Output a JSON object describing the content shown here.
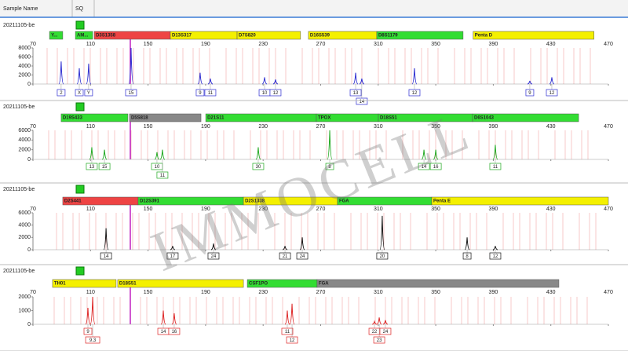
{
  "header": {
    "sample_name": "Sample Name",
    "sq": "SQ"
  },
  "watermark": "IMMOCELL",
  "xticks": [
    70,
    110,
    150,
    190,
    230,
    270,
    310,
    350,
    390,
    430,
    470
  ],
  "xlim": [
    70,
    470
  ],
  "panels": [
    {
      "sample": "20211105-be",
      "color": "#2b2bd0",
      "ylim": [
        0,
        8000
      ],
      "yticks": [
        0,
        2000,
        4000,
        6000,
        8000
      ],
      "loci": [
        {
          "name": "Y...",
          "color": "#33dd33",
          "range": [
            81.5,
            90.7
          ]
        },
        {
          "name": "AM...",
          "color": "#33dd33",
          "range": [
            99.5,
            111.5
          ]
        },
        {
          "name": "D3S1358",
          "color": "#ee4444",
          "range": [
            112.6,
            165.5
          ]
        },
        {
          "name": "D13S317",
          "color": "#f4f000",
          "range": [
            165.5,
            211.9
          ]
        },
        {
          "name": "D7S820",
          "color": "#f4f000",
          "range": [
            211.9,
            256
          ]
        },
        {
          "name": "D16S539",
          "color": "#f4f000",
          "range": [
            261.5,
            309
          ]
        },
        {
          "name": "D8S1179",
          "color": "#33dd33",
          "range": [
            309,
            369
          ]
        },
        {
          "name": "Penta D",
          "color": "#f4f000",
          "range": [
            376,
            460
          ]
        }
      ],
      "peaks": [
        {
          "bp": 89.6,
          "height": 5000,
          "allele": "2"
        },
        {
          "bp": 102.2,
          "height": 3500,
          "allele": "X"
        },
        {
          "bp": 108.7,
          "height": 4500,
          "allele": "Y"
        },
        {
          "bp": 138.2,
          "height": 8000,
          "allele": "15"
        },
        {
          "bp": 186.2,
          "height": 2500,
          "allele": "9"
        },
        {
          "bp": 193.3,
          "height": 1200,
          "allele": "11"
        },
        {
          "bp": 231,
          "height": 1500,
          "allele": "10"
        },
        {
          "bp": 238.6,
          "height": 1000,
          "allele": "12"
        },
        {
          "bp": 294.3,
          "height": 2500,
          "allele": "13"
        },
        {
          "bp": 298.6,
          "height": 1200,
          "allele": "14"
        },
        {
          "bp": 335.2,
          "height": 3500,
          "allele": "12"
        },
        {
          "bp": 415.4,
          "height": 700,
          "allele": "9"
        },
        {
          "bp": 430.7,
          "height": 1500,
          "allele": "12"
        }
      ]
    },
    {
      "sample": "20211105-be",
      "color": "#1fa81f",
      "ylim": [
        0,
        6000
      ],
      "yticks": [
        0,
        2000,
        4000,
        6000
      ],
      "loci": [
        {
          "name": "D19S433",
          "color": "#33dd33",
          "range": [
            89.6,
            136
          ]
        },
        {
          "name": "D5S818",
          "color": "#888888",
          "range": [
            137.1,
            186.8
          ]
        },
        {
          "name": "D21S11",
          "color": "#33dd33",
          "range": [
            190.1,
            267
          ]
        },
        {
          "name": "TPOX",
          "color": "#33dd33",
          "range": [
            267,
            310.1
          ]
        },
        {
          "name": "D18S51",
          "color": "#33dd33",
          "range": [
            310.1,
            375.6
          ]
        },
        {
          "name": "D6S1043",
          "color": "#33dd33",
          "range": [
            375.6,
            449.3
          ]
        }
      ],
      "peaks": [
        {
          "bp": 110.9,
          "height": 2500,
          "allele": "13"
        },
        {
          "bp": 119.7,
          "height": 2000,
          "allele": "15"
        },
        {
          "bp": 156.2,
          "height": 1500,
          "allele": "10"
        },
        {
          "bp": 160,
          "height": 2000,
          "allele": "11"
        },
        {
          "bp": 226.6,
          "height": 2500,
          "allele": "30"
        },
        {
          "bp": 276.3,
          "height": 6000,
          "allele": "8"
        },
        {
          "bp": 341.8,
          "height": 2000,
          "allele": "14"
        },
        {
          "bp": 350,
          "height": 2000,
          "allele": "16"
        },
        {
          "bp": 391.4,
          "height": 3000,
          "allele": "11"
        }
      ]
    },
    {
      "sample": "20211105-be",
      "color": "#111111",
      "ylim": [
        0,
        6000
      ],
      "yticks": [
        0,
        2000,
        4000,
        6000
      ],
      "loci": [
        {
          "name": "D2S441",
          "color": "#ee4444",
          "range": [
            90.7,
            143.1
          ]
        },
        {
          "name": "D12S391",
          "color": "#33dd33",
          "range": [
            143.1,
            216.3
          ]
        },
        {
          "name": "D2S1338",
          "color": "#f4f000",
          "range": [
            216.3,
            281.7
          ]
        },
        {
          "name": "FGA",
          "color": "#33dd33",
          "range": [
            281.7,
            347.2
          ]
        },
        {
          "name": "Penta E",
          "color": "#f4f000",
          "range": [
            347.2,
            470
          ]
        }
      ],
      "peaks": [
        {
          "bp": 120.8,
          "height": 3500,
          "allele": "14"
        },
        {
          "bp": 167.1,
          "height": 600,
          "allele": "17"
        },
        {
          "bp": 195.5,
          "height": 1000,
          "allele": "24"
        },
        {
          "bp": 245.2,
          "height": 600,
          "allele": "21"
        },
        {
          "bp": 257.2,
          "height": 2000,
          "allele": "24"
        },
        {
          "bp": 312.8,
          "height": 5500,
          "allele": "20"
        },
        {
          "bp": 371.8,
          "height": 2000,
          "allele": "8"
        },
        {
          "bp": 391.4,
          "height": 600,
          "allele": "12"
        }
      ]
    },
    {
      "sample": "20211105-be",
      "color": "#dd2222",
      "ylim": [
        0,
        2000
      ],
      "yticks": [
        0,
        1000,
        2000
      ],
      "loci": [
        {
          "name": "TH01",
          "color": "#f4f000",
          "range": [
            83.6,
            127.8
          ]
        },
        {
          "name": "D18S51",
          "color": "#f4f000",
          "range": [
            128.9,
            216.3
          ]
        },
        {
          "name": "CSF1PO",
          "color": "#33dd33",
          "range": [
            219,
            267.5
          ]
        },
        {
          "name": "FGA",
          "color": "#888888",
          "range": [
            267.5,
            435.6
          ]
        }
      ],
      "peaks": [
        {
          "bp": 108.2,
          "height": 1200,
          "allele": "9"
        },
        {
          "bp": 111.5,
          "height": 2000,
          "allele": "9.3"
        },
        {
          "bp": 160.6,
          "height": 1000,
          "allele": "14"
        },
        {
          "bp": 168.2,
          "height": 800,
          "allele": "16"
        },
        {
          "bp": 246.8,
          "height": 1000,
          "allele": "11"
        },
        {
          "bp": 250.1,
          "height": 1500,
          "allele": "12"
        },
        {
          "bp": 307.4,
          "height": 200,
          "allele": "22"
        },
        {
          "bp": 310.7,
          "height": 500,
          "allele": "23"
        },
        {
          "bp": 315,
          "height": 300,
          "allele": "24"
        }
      ]
    }
  ]
}
